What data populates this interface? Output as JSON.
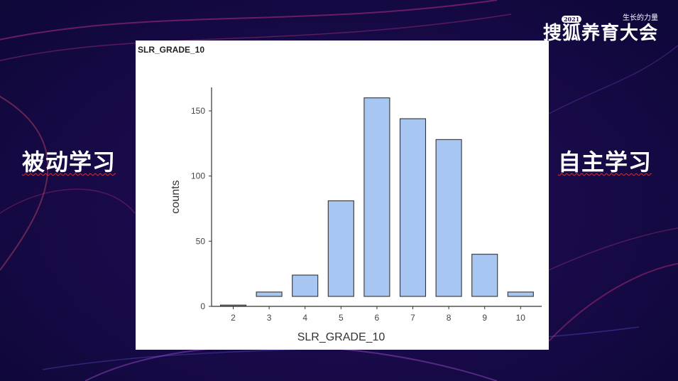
{
  "slide": {
    "left_label": "被动学习",
    "right_label": "自主学习"
  },
  "logo": {
    "year": "2021",
    "tagline": "生长的力量",
    "name": "搜狐养育大会"
  },
  "colors": {
    "bar_fill": "#a8c6f2",
    "bar_stroke": "#333333",
    "panel_bg": "#ffffff",
    "slide_bg": "#1a0a4a",
    "underline": "#d0303a"
  },
  "chart_data": {
    "type": "bar",
    "title": "SLR_GRADE_10",
    "xlabel": "SLR_GRADE_10",
    "ylabel": "counts",
    "categories": [
      "2",
      "3",
      "4",
      "5",
      "6",
      "7",
      "8",
      "9",
      "10"
    ],
    "values": [
      1,
      11,
      24,
      81,
      160,
      144,
      128,
      40,
      11
    ],
    "ylim": [
      0,
      168
    ],
    "yticks": [
      0,
      50,
      100,
      150
    ],
    "grid": false
  }
}
